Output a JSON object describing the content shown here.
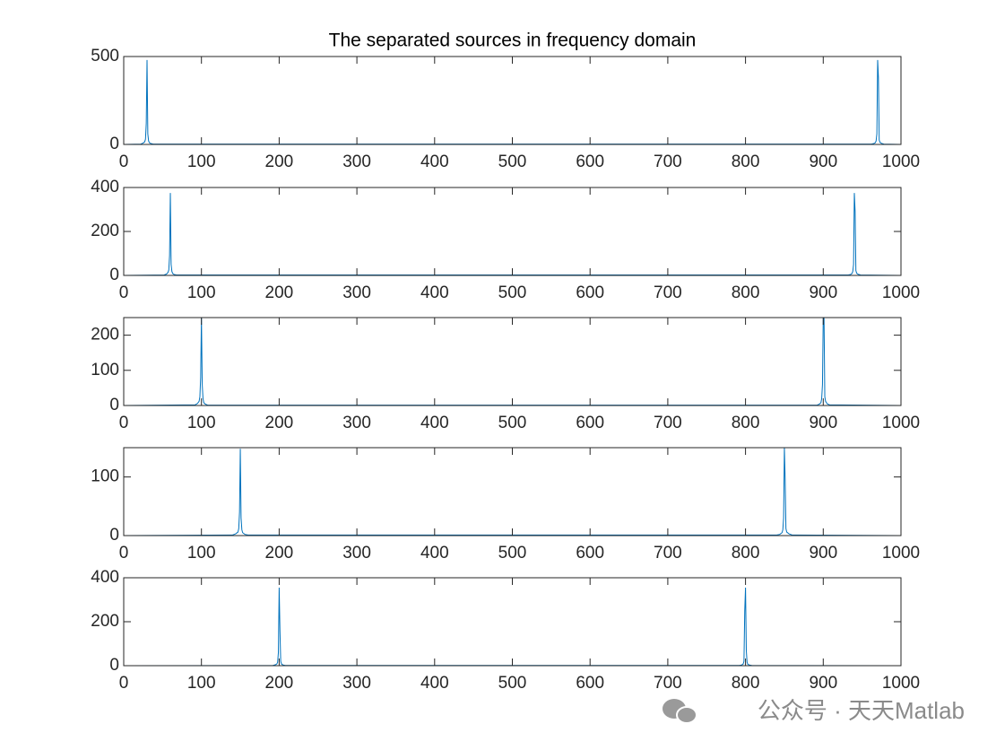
{
  "chart_data": [
    {
      "type": "line",
      "title": "The separated sources in frequency domain",
      "xlim": [
        0,
        1000
      ],
      "xticks": [
        0,
        100,
        200,
        300,
        400,
        500,
        600,
        700,
        800,
        900,
        1000
      ],
      "ylim": [
        0,
        500
      ],
      "yticks": [
        0,
        500
      ],
      "series": [
        {
          "color": "#0072BD",
          "x": [
            0,
            22,
            25,
            27,
            28,
            29,
            30,
            31,
            32,
            33,
            35,
            38,
            962,
            965,
            967,
            968,
            969,
            970,
            971,
            972,
            973,
            975,
            978,
            1000
          ],
          "values": [
            0,
            2,
            8,
            15,
            30,
            120,
            480,
            60,
            20,
            10,
            5,
            2,
            2,
            5,
            10,
            20,
            60,
            480,
            380,
            25,
            12,
            6,
            2,
            0
          ]
        }
      ]
    },
    {
      "type": "line",
      "xlim": [
        0,
        1000
      ],
      "xticks": [
        0,
        100,
        200,
        300,
        400,
        500,
        600,
        700,
        800,
        900,
        1000
      ],
      "ylim": [
        0,
        400
      ],
      "yticks": [
        0,
        200,
        400
      ],
      "series": [
        {
          "color": "#0072BD",
          "x": [
            0,
            52,
            55,
            57,
            58,
            59,
            60,
            61,
            62,
            63,
            65,
            68,
            932,
            935,
            937,
            938,
            939,
            940,
            941,
            942,
            943,
            945,
            948,
            1000
          ],
          "values": [
            0,
            2,
            6,
            14,
            25,
            90,
            375,
            50,
            18,
            9,
            4,
            2,
            2,
            4,
            9,
            18,
            50,
            375,
            290,
            22,
            10,
            5,
            2,
            0
          ]
        }
      ]
    },
    {
      "type": "line",
      "xlim": [
        0,
        1000
      ],
      "xticks": [
        0,
        100,
        200,
        300,
        400,
        500,
        600,
        700,
        800,
        900,
        1000
      ],
      "ylim": [
        0,
        250
      ],
      "yticks": [
        0,
        100,
        200
      ],
      "series": [
        {
          "color": "#0072BD",
          "x": [
            0,
            92,
            95,
            97,
            98,
            99,
            100,
            101,
            102,
            103,
            105,
            108,
            892,
            895,
            897,
            898,
            899,
            900,
            901,
            902,
            903,
            905,
            908,
            1000
          ],
          "values": [
            0,
            2,
            6,
            12,
            25,
            80,
            250,
            60,
            20,
            8,
            4,
            1,
            1,
            4,
            8,
            20,
            60,
            250,
            250,
            25,
            12,
            5,
            2,
            0
          ]
        }
      ]
    },
    {
      "type": "line",
      "xlim": [
        0,
        1000
      ],
      "xticks": [
        0,
        100,
        200,
        300,
        400,
        500,
        600,
        700,
        800,
        900,
        1000
      ],
      "ylim": [
        0,
        150
      ],
      "yticks": [
        0,
        100
      ],
      "series": [
        {
          "color": "#0072BD",
          "x": [
            0,
            140,
            144,
            147,
            148,
            149,
            150,
            151,
            152,
            153,
            156,
            160,
            840,
            844,
            847,
            848,
            849,
            850,
            851,
            852,
            853,
            856,
            860,
            1000
          ],
          "values": [
            0,
            1,
            3,
            6,
            12,
            40,
            148,
            30,
            10,
            5,
            2,
            1,
            1,
            2,
            5,
            10,
            30,
            150,
            95,
            12,
            6,
            3,
            1,
            0
          ]
        }
      ]
    },
    {
      "type": "line",
      "xlim": [
        0,
        1000
      ],
      "xticks": [
        0,
        100,
        200,
        300,
        400,
        500,
        600,
        700,
        800,
        900,
        1000
      ],
      "ylim": [
        0,
        400
      ],
      "yticks": [
        0,
        200,
        400
      ],
      "series": [
        {
          "color": "#0072BD",
          "x": [
            0,
            192,
            195,
            197,
            198,
            199,
            200,
            201,
            202,
            203,
            205,
            208,
            792,
            795,
            797,
            798,
            799,
            800,
            801,
            802,
            803,
            805,
            808,
            1000
          ],
          "values": [
            0,
            1,
            4,
            8,
            15,
            60,
            355,
            160,
            20,
            8,
            3,
            1,
            1,
            3,
            8,
            20,
            250,
            355,
            70,
            15,
            6,
            3,
            1,
            0
          ]
        }
      ]
    }
  ],
  "watermark": "公众号 · 天天Matlab"
}
